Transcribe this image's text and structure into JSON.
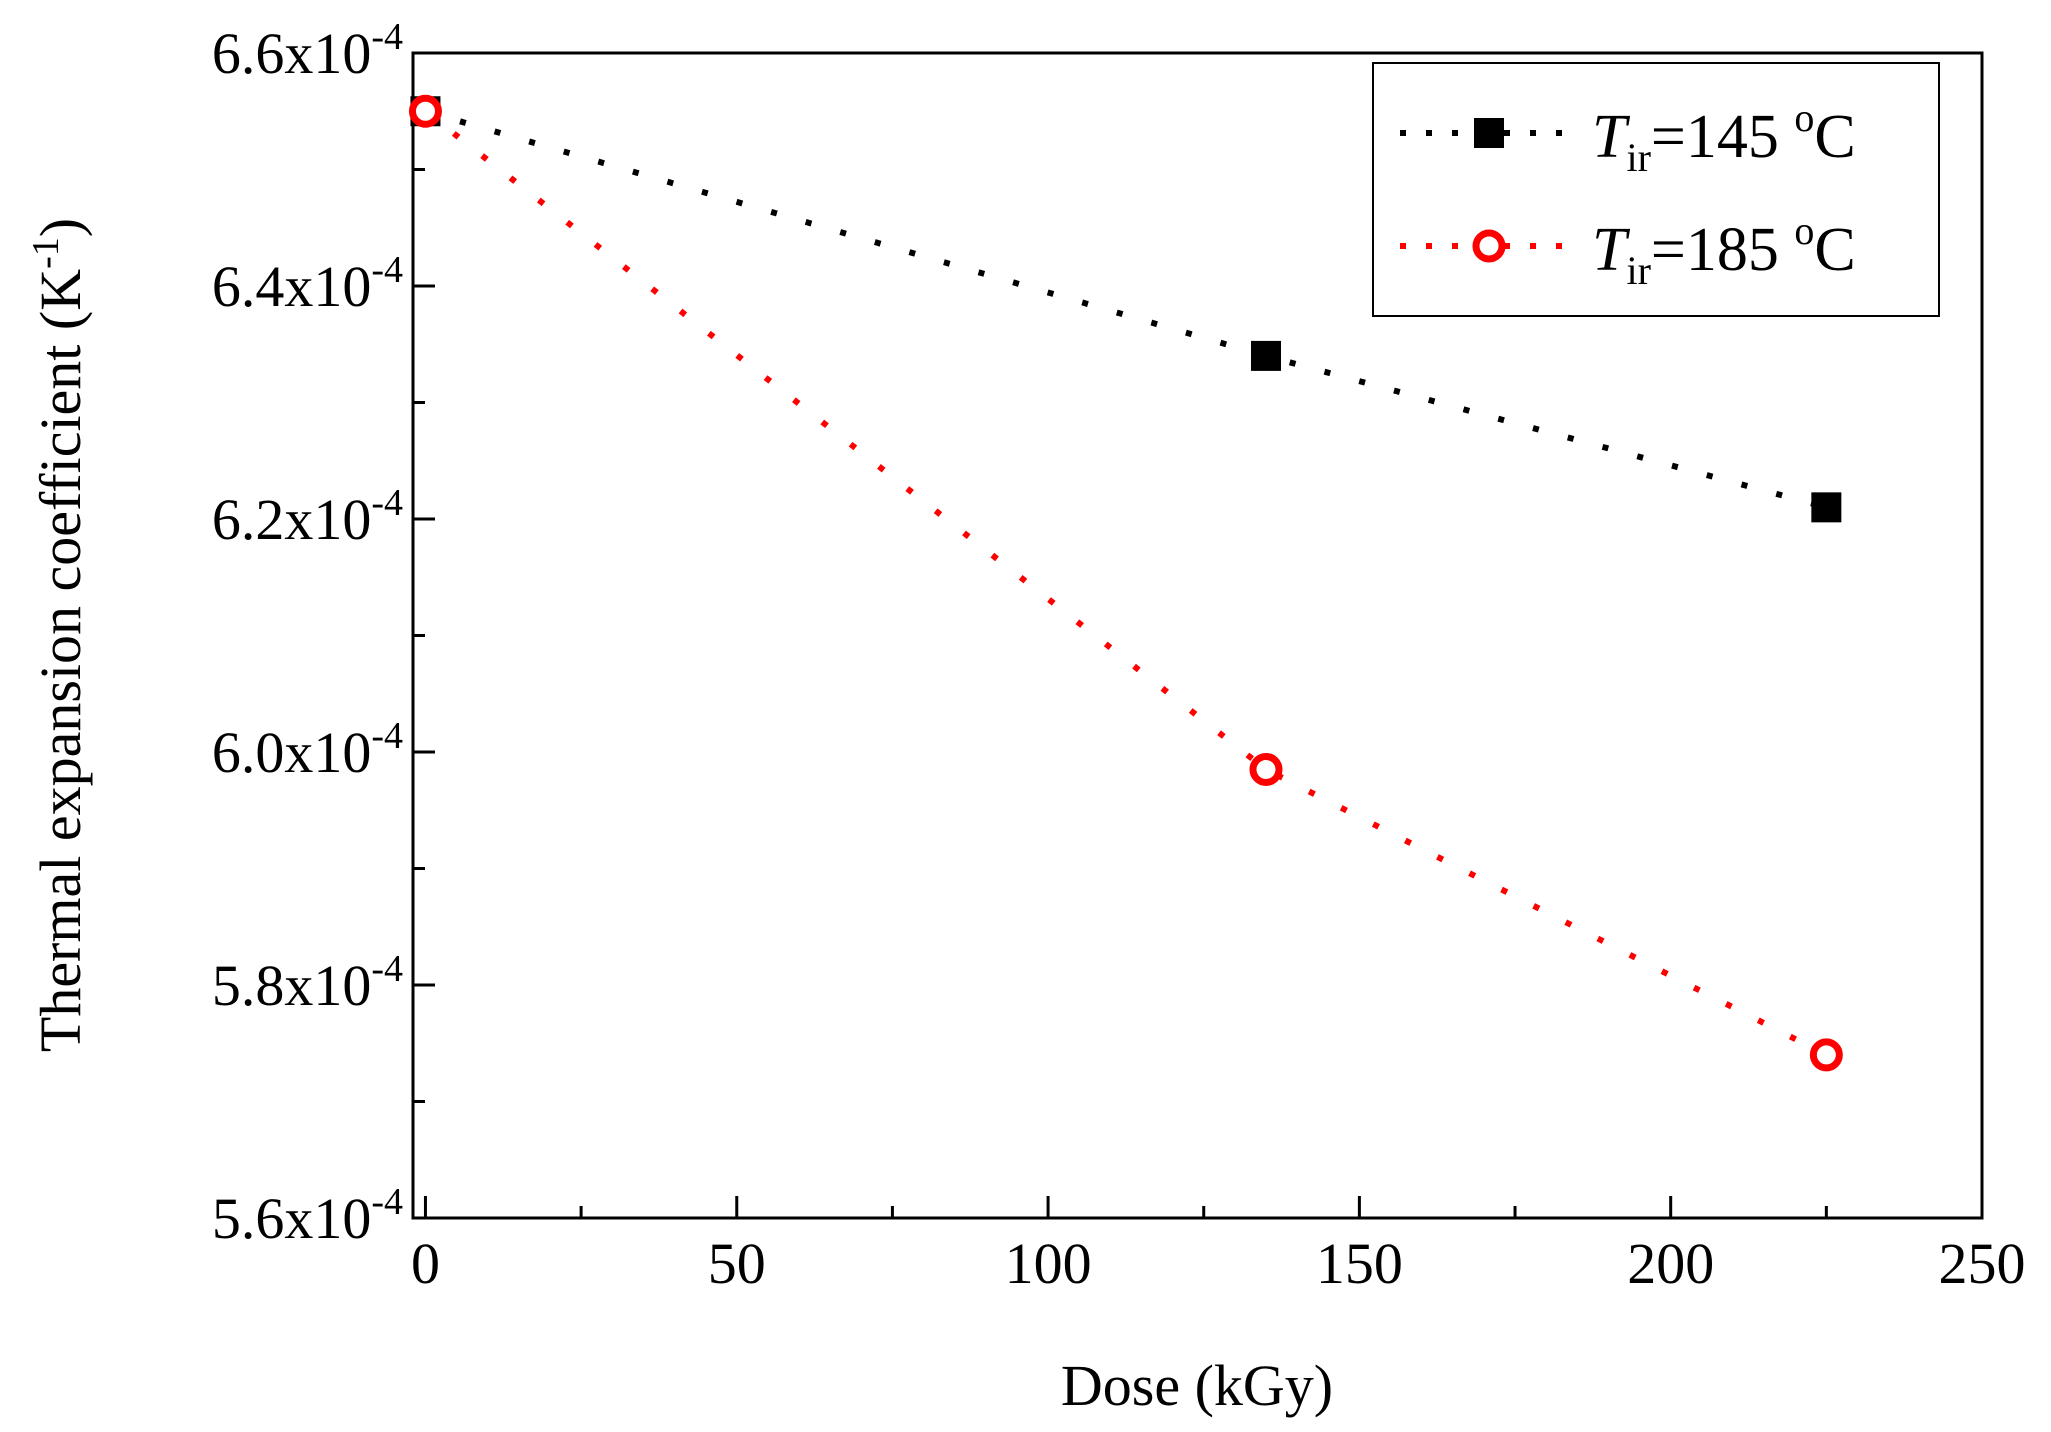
{
  "chart_data": {
    "type": "scatter",
    "xlabel": "Dose (kGy)",
    "ylabel_main": "Thermal expansion coefficient (K",
    "ylabel_sup": "-1",
    "ylabel_close": ")",
    "xlim": [
      -2,
      250
    ],
    "ylim": [
      0.00056,
      0.00066
    ],
    "x_ticks": [
      0,
      50,
      100,
      150,
      200,
      250
    ],
    "x_tick_labels": [
      "0",
      "50",
      "100",
      "150",
      "200",
      "250"
    ],
    "y_ticks": [
      0.00056,
      0.00058,
      0.0006,
      0.00062,
      0.00064,
      0.00066
    ],
    "y_tick_labels": [
      {
        "mantissa": "5.6x10",
        "exponent": "-4"
      },
      {
        "mantissa": "5.8x10",
        "exponent": "-4"
      },
      {
        "mantissa": "6.0x10",
        "exponent": "-4"
      },
      {
        "mantissa": "6.2x10",
        "exponent": "-4"
      },
      {
        "mantissa": "6.4x10",
        "exponent": "-4"
      },
      {
        "mantissa": "6.6x10",
        "exponent": "-4"
      }
    ],
    "legend_position": "top-right",
    "series": [
      {
        "name": "T_ir=145 °C",
        "legend_T": "T",
        "legend_sub": "ir",
        "legend_value": "=145 ",
        "legend_deg": "o",
        "legend_unit": "C",
        "marker": "square-filled",
        "color": "#000000",
        "line": "dotted",
        "x": [
          0,
          135,
          225
        ],
        "y": [
          0.000655,
          0.000634,
          0.000621
        ]
      },
      {
        "name": "T_ir=185 °C",
        "legend_T": "T",
        "legend_sub": "ir",
        "legend_value": "=185 ",
        "legend_deg": "o",
        "legend_unit": "C",
        "marker": "circle-open",
        "color": "#ff0000",
        "line": "dotted",
        "x": [
          0,
          135,
          225
        ],
        "y": [
          0.000655,
          0.0005985,
          0.000574
        ]
      }
    ]
  }
}
